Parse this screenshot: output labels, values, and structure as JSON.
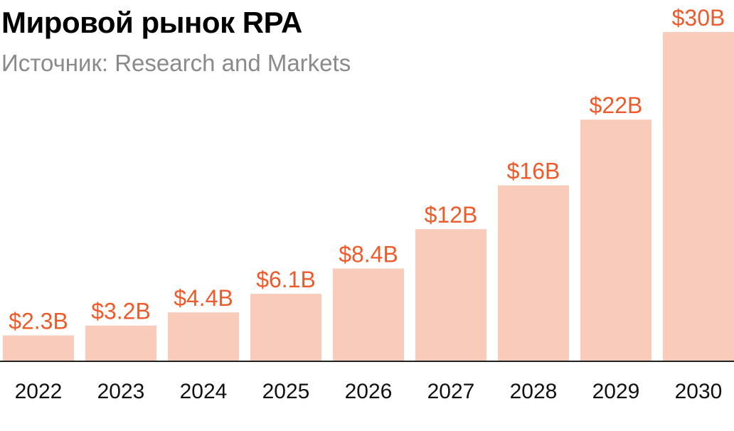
{
  "header": {
    "title": "Мировой рынок RPA",
    "subtitle": "Источник: Research and Markets"
  },
  "colors": {
    "bar": "#f9cbbb",
    "label": "#ef5a2b",
    "axis": "#222222",
    "tick_text": "#111111"
  },
  "chart_data": {
    "type": "bar",
    "title": "Мировой рынок RPA",
    "subtitle": "Источник: Research and Markets",
    "categories": [
      "2022",
      "2023",
      "2024",
      "2025",
      "2026",
      "2027",
      "2028",
      "2029",
      "2030"
    ],
    "values": [
      2.3,
      3.2,
      4.4,
      6.1,
      8.4,
      12,
      16,
      22,
      30
    ],
    "data_labels": [
      "$2.3B",
      "$3.2B",
      "$4.4B",
      "$6.1B",
      "$8.4B",
      "$12B",
      "$16B",
      "$22B",
      "$30B"
    ],
    "ylim": [
      0,
      30
    ],
    "grid": false,
    "legend": "none"
  }
}
